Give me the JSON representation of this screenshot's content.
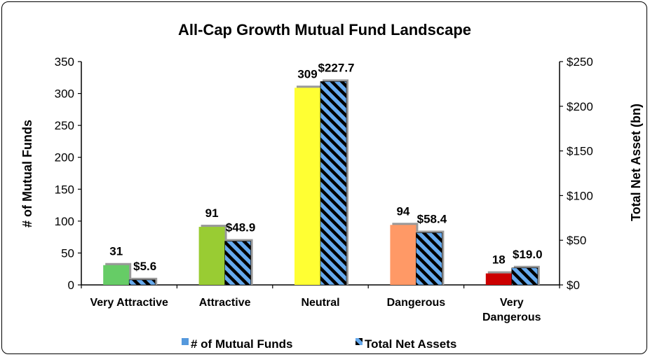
{
  "chart_data": {
    "type": "bar",
    "title": "All-Cap Growth Mutual Fund Landscape",
    "categories": [
      "Very Attractive",
      "Attractive",
      "Neutral",
      "Dangerous",
      "Very Dangerous"
    ],
    "category_lines": [
      [
        "Very Attractive"
      ],
      [
        "Attractive"
      ],
      [
        "Neutral"
      ],
      [
        "Dangerous"
      ],
      [
        "Very",
        "Dangerous"
      ]
    ],
    "series": [
      {
        "name": "# of Mutual Funds",
        "axis": "left",
        "values": [
          31,
          91,
          309,
          94,
          18
        ],
        "labels": [
          "31",
          "91",
          "309",
          "94",
          "18"
        ],
        "colors": [
          "#66cc66",
          "#99cc33",
          "#ffff33",
          "#ff9966",
          "#cc0000"
        ],
        "legend_color": "#5599dd"
      },
      {
        "name": "Total Net Assets",
        "axis": "right",
        "values": [
          5.6,
          48.9,
          227.7,
          58.4,
          19.0
        ],
        "labels": [
          "$5.6",
          "$48.9",
          "$227.7",
          "$58.4",
          "$19.0"
        ],
        "pattern_colors": [
          "#66aaee",
          "#000000"
        ]
      }
    ],
    "y_left": {
      "label": "# of Mutual Funds",
      "range": [
        0,
        350
      ],
      "ticks": [
        0,
        50,
        100,
        150,
        200,
        250,
        300,
        350
      ],
      "tick_labels": [
        "0",
        "50",
        "100",
        "150",
        "200",
        "250",
        "300",
        "350"
      ]
    },
    "y_right": {
      "label": "Total Net Asset (bn)",
      "range": [
        0,
        250
      ],
      "ticks": [
        0,
        50,
        100,
        150,
        200,
        250
      ],
      "tick_labels": [
        "$0",
        "$50",
        "$100",
        "$150",
        "$200",
        "$250"
      ]
    },
    "grid": false,
    "legend_position": "bottom"
  }
}
